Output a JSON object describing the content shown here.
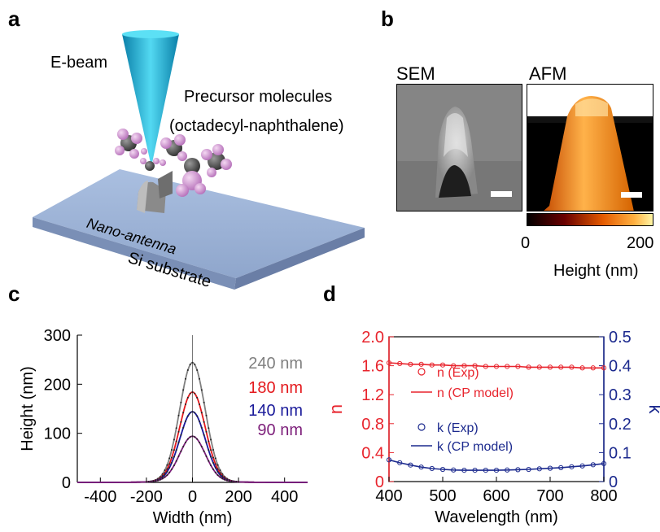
{
  "panels": {
    "a": {
      "letter": "a",
      "ebeam_label": "E-beam",
      "precursor_label": "Precursor molecules",
      "precursor_sub": "(octadecyl-naphthalene)",
      "antenna_label": "Nano-antenna",
      "substrate_label": "Si substrate"
    },
    "b": {
      "letter": "b",
      "sem_label": "SEM",
      "afm_label": "AFM",
      "colorbar_min": "0",
      "colorbar_max": "200",
      "colorbar_label": "Height (nm)"
    },
    "c": {
      "letter": "c"
    },
    "d": {
      "letter": "d"
    }
  },
  "colors": {
    "exp_n": "#e8242d",
    "exp_k": "#1c2a8e",
    "gray": "#7f7f7f",
    "red": "#e4191d",
    "blue": "#1a1a9a",
    "purple": "#7d1f7a"
  },
  "chart_data": [
    {
      "type": "line",
      "xlabel": "Width (nm)",
      "ylabel": "Height (nm)",
      "xlim": [
        -500,
        500
      ],
      "ylim": [
        0,
        300
      ],
      "xticks": [
        -400,
        -200,
        0,
        200,
        400
      ],
      "yticks": [
        0,
        100,
        200,
        300
      ],
      "series": [
        {
          "name": "240 nm",
          "color": "#808080",
          "peak": 240
        },
        {
          "name": "180 nm",
          "color": "#e4191d",
          "peak": 180
        },
        {
          "name": "140 nm",
          "color": "#1a1a9a",
          "peak": 140
        },
        {
          "name": "90 nm",
          "color": "#7d1f7a",
          "peak": 90
        }
      ]
    },
    {
      "type": "scatter",
      "xlabel": "Wavelength (nm)",
      "ylabel_left": "n",
      "ylabel_right": "k",
      "xlim": [
        400,
        800
      ],
      "ylim_left": [
        0,
        2.0
      ],
      "ylim_right": [
        0,
        0.5
      ],
      "xticks": [
        400,
        500,
        600,
        700,
        800
      ],
      "yticks_left": [
        "0",
        "0.4",
        "0.8",
        "1.2",
        "1.6",
        "2.0"
      ],
      "yticks_right": [
        "0",
        "0.1",
        "0.2",
        "0.3",
        "0.4",
        "0.5"
      ],
      "legend": [
        "n (Exp)",
        "n (CP model)",
        "k (Exp)",
        "k (CP model)"
      ],
      "n_exp": [
        [
          400,
          1.64
        ],
        [
          420,
          1.63
        ],
        [
          440,
          1.62
        ],
        [
          460,
          1.62
        ],
        [
          480,
          1.61
        ],
        [
          500,
          1.61
        ],
        [
          520,
          1.6
        ],
        [
          540,
          1.6
        ],
        [
          560,
          1.6
        ],
        [
          580,
          1.59
        ],
        [
          600,
          1.59
        ],
        [
          620,
          1.59
        ],
        [
          640,
          1.59
        ],
        [
          660,
          1.58
        ],
        [
          680,
          1.58
        ],
        [
          700,
          1.58
        ],
        [
          720,
          1.58
        ],
        [
          740,
          1.58
        ],
        [
          760,
          1.57
        ],
        [
          780,
          1.57
        ],
        [
          800,
          1.57
        ]
      ],
      "k_exp": [
        [
          400,
          0.075
        ],
        [
          420,
          0.065
        ],
        [
          440,
          0.057
        ],
        [
          460,
          0.05
        ],
        [
          480,
          0.045
        ],
        [
          500,
          0.042
        ],
        [
          520,
          0.04
        ],
        [
          540,
          0.039
        ],
        [
          560,
          0.039
        ],
        [
          580,
          0.039
        ],
        [
          600,
          0.039
        ],
        [
          620,
          0.04
        ],
        [
          640,
          0.041
        ],
        [
          660,
          0.042
        ],
        [
          680,
          0.044
        ],
        [
          700,
          0.046
        ],
        [
          720,
          0.048
        ],
        [
          740,
          0.051
        ],
        [
          760,
          0.054
        ],
        [
          780,
          0.058
        ],
        [
          800,
          0.062
        ]
      ]
    }
  ]
}
